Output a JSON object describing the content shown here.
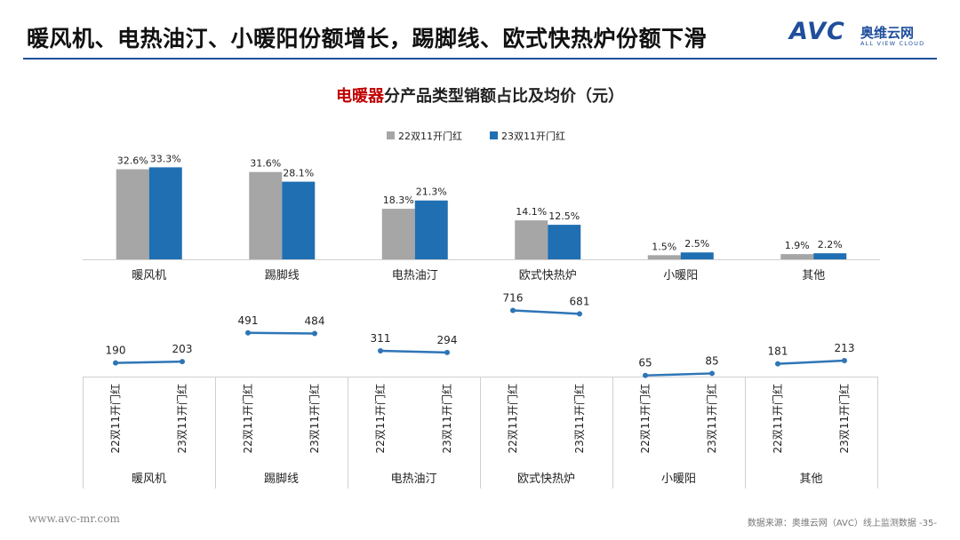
{
  "header": {
    "title": "暖风机、电热油汀、小暖阳份额增长，踢脚线、欧式快热炉份额下滑",
    "logo_mark": "AVC",
    "logo_cn": "奥维云网",
    "logo_en": "ALL VIEW CLOUD"
  },
  "chart_title": {
    "highlight": "电暖器",
    "rest": "分产品类型销额占比及均价（元）"
  },
  "colors": {
    "series1": "#a6a6a6",
    "series2": "#1f6fb2",
    "line": "#2e75b6",
    "accent": "#1f4e9c"
  },
  "chart_data": [
    {
      "type": "bar",
      "categories": [
        "暖风机",
        "踢脚线",
        "电热油汀",
        "欧式快热炉",
        "小暖阳",
        "其他"
      ],
      "series": [
        {
          "name": "22双11开门红",
          "values": [
            32.6,
            31.6,
            18.3,
            14.1,
            1.5,
            1.9
          ],
          "labels": [
            "32.6%",
            "31.6%",
            "18.3%",
            "14.1%",
            "1.5%",
            "1.9%"
          ]
        },
        {
          "name": "23双11开门红",
          "values": [
            33.3,
            28.1,
            21.3,
            12.5,
            2.5,
            2.2
          ],
          "labels": [
            "33.3%",
            "28.1%",
            "21.3%",
            "12.5%",
            "2.5%",
            "2.2%"
          ]
        }
      ],
      "legend": "top-center",
      "ylim": [
        0,
        36
      ]
    },
    {
      "type": "line",
      "categories": [
        "暖风机",
        "踢脚线",
        "电热油汀",
        "欧式快热炉",
        "小暖阳",
        "其他"
      ],
      "sub_categories": [
        "22双11开门红",
        "23双11开门红"
      ],
      "groups": [
        {
          "category": "暖风机",
          "values": [
            190,
            203
          ]
        },
        {
          "category": "踢脚线",
          "values": [
            491,
            484
          ]
        },
        {
          "category": "电热油汀",
          "values": [
            311,
            294
          ]
        },
        {
          "category": "欧式快热炉",
          "values": [
            716,
            681
          ]
        },
        {
          "category": "小暖阳",
          "values": [
            65,
            85
          ]
        },
        {
          "category": "其他",
          "values": [
            181,
            213
          ]
        }
      ],
      "ylim": [
        0,
        800
      ]
    }
  ],
  "footer": {
    "website": "www.avc-mr.com",
    "source": "数据来源：奥维云网（AVC）线上监测数据  -35-"
  }
}
